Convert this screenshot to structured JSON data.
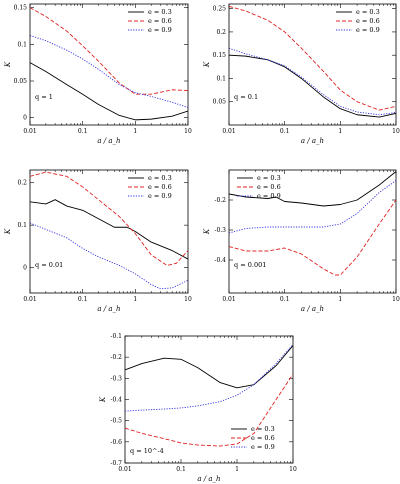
{
  "chart_data": [
    {
      "type": "line",
      "panel_label": "q = 1",
      "ylabel": "K",
      "xlabel": "a / a_h",
      "xscale": "log",
      "xlim": [
        0.01,
        10
      ],
      "ylim": [
        -0.01,
        0.155
      ],
      "xticks": [
        0.01,
        0.1,
        1,
        10
      ],
      "xtick_labels": [
        "0.01",
        "0.1",
        "1",
        "10"
      ],
      "yticks": [
        0,
        0.05,
        0.1,
        0.15
      ],
      "ytick_labels": [
        "0",
        "0.05",
        "0.1",
        "0.15"
      ],
      "legend_position": "top-right",
      "series": [
        {
          "name": "e = 0.3",
          "color": "#000000",
          "dash": "solid",
          "x": [
            0.01,
            0.02,
            0.05,
            0.1,
            0.2,
            0.5,
            1,
            2,
            5,
            10
          ],
          "y": [
            0.075,
            0.063,
            0.045,
            0.032,
            0.018,
            0.003,
            -0.003,
            -0.002,
            0.002,
            0.009
          ]
        },
        {
          "name": "e = 0.6",
          "color": "#e02020",
          "dash": "dashed",
          "x": [
            0.01,
            0.02,
            0.05,
            0.1,
            0.2,
            0.5,
            1,
            2,
            5,
            10
          ],
          "y": [
            0.15,
            0.138,
            0.118,
            0.098,
            0.077,
            0.047,
            0.032,
            0.032,
            0.038,
            0.037
          ]
        },
        {
          "name": "e = 0.9",
          "color": "#3030e0",
          "dash": "dotted",
          "x": [
            0.01,
            0.02,
            0.05,
            0.1,
            0.2,
            0.5,
            1,
            2,
            5,
            10
          ],
          "y": [
            0.112,
            0.105,
            0.092,
            0.08,
            0.066,
            0.045,
            0.034,
            0.029,
            0.021,
            0.014
          ]
        }
      ]
    },
    {
      "type": "line",
      "panel_label": "q = 0.1",
      "ylabel": "K",
      "xlabel": "a / a_h",
      "xscale": "log",
      "xlim": [
        0.01,
        10
      ],
      "ylim": [
        0.0,
        0.26
      ],
      "xticks": [
        0.01,
        0.1,
        1,
        10
      ],
      "xtick_labels": [
        "0.01",
        "0.1",
        "1",
        "10"
      ],
      "yticks": [
        0.05,
        0.1,
        0.15,
        0.2,
        0.25
      ],
      "ytick_labels": [
        "0.05",
        "0.1",
        "0.15",
        "0.2",
        "0.25"
      ],
      "legend_position": "top-right",
      "series": [
        {
          "name": "e = 0.3",
          "color": "#000000",
          "dash": "solid",
          "x": [
            0.01,
            0.02,
            0.05,
            0.1,
            0.2,
            0.5,
            1,
            2,
            5,
            10
          ],
          "y": [
            0.15,
            0.148,
            0.14,
            0.125,
            0.1,
            0.06,
            0.035,
            0.022,
            0.017,
            0.025
          ]
        },
        {
          "name": "e = 0.6",
          "color": "#e02020",
          "dash": "dashed",
          "x": [
            0.01,
            0.02,
            0.05,
            0.1,
            0.2,
            0.5,
            1,
            2,
            5,
            10
          ],
          "y": [
            0.255,
            0.245,
            0.225,
            0.2,
            0.165,
            0.115,
            0.075,
            0.05,
            0.032,
            0.04
          ]
        },
        {
          "name": "e = 0.9",
          "color": "#3030e0",
          "dash": "dotted",
          "x": [
            0.01,
            0.02,
            0.05,
            0.1,
            0.2,
            0.5,
            1,
            2,
            5,
            10
          ],
          "y": [
            0.165,
            0.153,
            0.14,
            0.127,
            0.103,
            0.065,
            0.04,
            0.028,
            0.022,
            0.027
          ]
        }
      ]
    },
    {
      "type": "line",
      "panel_label": "q = 0.01",
      "ylabel": "K",
      "xlabel": "a / a_h",
      "xscale": "log",
      "xlim": [
        0.01,
        10
      ],
      "ylim": [
        -0.06,
        0.23
      ],
      "xticks": [
        0.01,
        0.1,
        1,
        10
      ],
      "xtick_labels": [
        "0.01",
        "0.1",
        "1",
        "10"
      ],
      "yticks": [
        0,
        0.1,
        0.2
      ],
      "ytick_labels": [
        "0",
        "0.1",
        "0.2"
      ],
      "legend_position": "top-right",
      "series": [
        {
          "name": "e = 0.3",
          "color": "#000000",
          "dash": "solid",
          "x": [
            0.01,
            0.02,
            0.03,
            0.05,
            0.1,
            0.2,
            0.4,
            0.7,
            1,
            2,
            5,
            10
          ],
          "y": [
            0.155,
            0.15,
            0.16,
            0.145,
            0.135,
            0.115,
            0.095,
            0.095,
            0.085,
            0.06,
            0.04,
            0.02
          ]
        },
        {
          "name": "e = 0.6",
          "color": "#e02020",
          "dash": "dashed",
          "x": [
            0.01,
            0.02,
            0.05,
            0.1,
            0.2,
            0.5,
            1,
            2,
            4,
            6,
            10
          ],
          "y": [
            0.215,
            0.225,
            0.215,
            0.19,
            0.16,
            0.12,
            0.08,
            0.03,
            0.005,
            0.01,
            0.04
          ]
        },
        {
          "name": "e = 0.9",
          "color": "#3030e0",
          "dash": "dotted",
          "x": [
            0.01,
            0.02,
            0.05,
            0.1,
            0.2,
            0.5,
            1,
            2,
            3,
            5,
            10
          ],
          "y": [
            0.105,
            0.09,
            0.07,
            0.045,
            0.025,
            0.005,
            -0.015,
            -0.04,
            -0.05,
            -0.048,
            -0.03
          ]
        }
      ]
    },
    {
      "type": "line",
      "panel_label": "q = 0.001",
      "ylabel": "K",
      "xlabel": "a / a_h",
      "xscale": "log",
      "xlim": [
        0.01,
        10
      ],
      "ylim": [
        -0.51,
        -0.1
      ],
      "xticks": [
        0.01,
        0.1,
        1,
        10
      ],
      "xtick_labels": [
        "0.01",
        "0.1",
        "1",
        "10"
      ],
      "yticks": [
        -0.4,
        -0.3,
        -0.2
      ],
      "ytick_labels": [
        "-0.4",
        "-0.3",
        "-0.2"
      ],
      "legend_position": "top-left",
      "series": [
        {
          "name": "e = 0.3",
          "color": "#000000",
          "dash": "solid",
          "x": [
            0.01,
            0.02,
            0.05,
            0.07,
            0.1,
            0.2,
            0.5,
            1,
            2,
            5,
            10
          ],
          "y": [
            -0.18,
            -0.19,
            -0.195,
            -0.19,
            -0.205,
            -0.21,
            -0.22,
            -0.215,
            -0.2,
            -0.15,
            -0.105
          ]
        },
        {
          "name": "e = 0.6",
          "color": "#e02020",
          "dash": "dashed",
          "x": [
            0.01,
            0.02,
            0.05,
            0.1,
            0.2,
            0.5,
            0.8,
            1,
            2,
            5,
            10
          ],
          "y": [
            -0.355,
            -0.37,
            -0.37,
            -0.36,
            -0.38,
            -0.43,
            -0.45,
            -0.45,
            -0.39,
            -0.28,
            -0.2
          ]
        },
        {
          "name": "e = 0.9",
          "color": "#3030e0",
          "dash": "dotted",
          "x": [
            0.01,
            0.02,
            0.05,
            0.1,
            0.2,
            0.5,
            1,
            2,
            5,
            10
          ],
          "y": [
            -0.31,
            -0.295,
            -0.29,
            -0.29,
            -0.29,
            -0.29,
            -0.28,
            -0.245,
            -0.175,
            -0.135
          ]
        }
      ]
    },
    {
      "type": "line",
      "panel_label": "q = 10^-4",
      "ylabel": "K",
      "xlabel": "a / a_h",
      "xscale": "log",
      "xlim": [
        0.01,
        10
      ],
      "ylim": [
        -0.7,
        -0.1
      ],
      "xticks": [
        0.01,
        0.1,
        1,
        10
      ],
      "xtick_labels": [
        "0.01",
        "0.1",
        "1",
        "10"
      ],
      "yticks": [
        -0.7,
        -0.6,
        -0.5,
        -0.4,
        -0.3,
        -0.2,
        -0.1
      ],
      "ytick_labels": [
        "-0.7",
        "-0.6",
        "-0.5",
        "-0.4",
        "-0.3",
        "-0.2",
        "-0.1"
      ],
      "legend_position": "bottom-right",
      "series": [
        {
          "name": "e = 0.3",
          "color": "#000000",
          "dash": "solid",
          "x": [
            0.01,
            0.02,
            0.05,
            0.1,
            0.2,
            0.5,
            1,
            2,
            5,
            10
          ],
          "y": [
            -0.26,
            -0.23,
            -0.205,
            -0.21,
            -0.25,
            -0.32,
            -0.345,
            -0.33,
            -0.24,
            -0.145
          ]
        },
        {
          "name": "e = 0.6",
          "color": "#e02020",
          "dash": "dashed",
          "x": [
            0.01,
            0.02,
            0.05,
            0.1,
            0.2,
            0.5,
            1,
            2,
            5,
            10
          ],
          "y": [
            -0.535,
            -0.56,
            -0.585,
            -0.605,
            -0.615,
            -0.62,
            -0.61,
            -0.56,
            -0.4,
            -0.28
          ]
        },
        {
          "name": "e = 0.9",
          "color": "#3030e0",
          "dash": "dotted",
          "x": [
            0.01,
            0.02,
            0.05,
            0.1,
            0.2,
            0.5,
            1,
            2,
            5,
            10
          ],
          "y": [
            -0.455,
            -0.45,
            -0.445,
            -0.44,
            -0.43,
            -0.41,
            -0.38,
            -0.33,
            -0.23,
            -0.14
          ]
        }
      ]
    }
  ]
}
